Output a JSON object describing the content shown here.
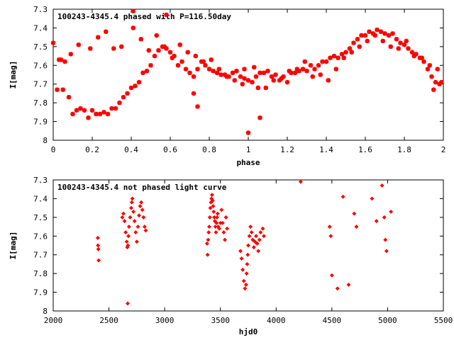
{
  "chart_data": [
    {
      "type": "scatter",
      "title": "100243-4345.4 phased with P=116.50day",
      "xlabel": "phase",
      "ylabel": "I[mag]",
      "xlim": [
        0,
        2
      ],
      "ylim": [
        8,
        7.3
      ],
      "y_inverted": true,
      "xticks": [
        "0",
        "0.2",
        "0.4",
        "0.6",
        "0.8",
        "1",
        "1.2",
        "1.4",
        "1.6",
        "1.8",
        "2"
      ],
      "yticks": [
        "7.3",
        "7.4",
        "7.5",
        "7.6",
        "7.7",
        "7.8",
        "7.9",
        "8"
      ],
      "grid": false,
      "marker_color": "#ff0000",
      "marker": "star",
      "series": [
        {
          "x": [
            0.0,
            0.02,
            0.03,
            0.05,
            0.06,
            0.08,
            0.1,
            0.12,
            0.14,
            0.16,
            0.18,
            0.2,
            0.22,
            0.24,
            0.26,
            0.28,
            0.3,
            0.32,
            0.34,
            0.36,
            0.38,
            0.4,
            0.42,
            0.44,
            0.46,
            0.48,
            0.5,
            0.52,
            0.54,
            0.56,
            0.58,
            0.6,
            0.62,
            0.64,
            0.66,
            0.68,
            0.7,
            0.72,
            0.74,
            0.76,
            0.78,
            0.8,
            0.82,
            0.84,
            0.86,
            0.88,
            0.9,
            0.92,
            0.94,
            0.96,
            0.98,
            1.0,
            1.02,
            1.04,
            1.06,
            1.08,
            1.1,
            1.12,
            1.14,
            1.16,
            1.18,
            1.2,
            1.22,
            1.24,
            1.26,
            1.28,
            1.3,
            1.32,
            1.34,
            1.36,
            1.38,
            1.4,
            1.42,
            1.44,
            1.46,
            1.48,
            1.5,
            1.52,
            1.54,
            1.56,
            1.58,
            1.6,
            1.62,
            1.64,
            1.66,
            1.68,
            1.7,
            1.72,
            1.74,
            1.76,
            1.78,
            1.8,
            1.82,
            1.84,
            1.86,
            1.88,
            1.9,
            1.92,
            1.94,
            1.96,
            1.98,
            0.04,
            0.09,
            0.13,
            0.19,
            0.23,
            0.27,
            0.31,
            0.35,
            0.41,
            0.45,
            0.49,
            0.53,
            0.57,
            0.61,
            0.65,
            0.69,
            0.73,
            0.77,
            0.81,
            0.85,
            0.89,
            0.93,
            0.97,
            1.05,
            1.09,
            1.13,
            1.17,
            1.21,
            1.25,
            1.29,
            1.33,
            1.37,
            1.41,
            1.45,
            1.49,
            1.53,
            1.57,
            1.61,
            1.65,
            1.69,
            1.73,
            1.77,
            1.81,
            1.85,
            1.89,
            1.93,
            1.97,
            0.41,
            0.58,
            1.0,
            1.06,
            0.74,
            0.72,
            0.98,
            1.03,
            1.95,
            1.99
          ],
          "y": [
            7.48,
            7.73,
            7.57,
            7.73,
            7.58,
            7.77,
            7.86,
            7.84,
            7.83,
            7.84,
            7.88,
            7.84,
            7.86,
            7.86,
            7.85,
            7.86,
            7.83,
            7.83,
            7.8,
            7.77,
            7.75,
            7.72,
            7.71,
            7.69,
            7.64,
            7.63,
            7.6,
            7.55,
            7.52,
            7.5,
            7.51,
            7.53,
            7.55,
            7.6,
            7.58,
            7.62,
            7.64,
            7.66,
            7.62,
            7.58,
            7.6,
            7.62,
            7.63,
            7.64,
            7.65,
            7.65,
            7.66,
            7.64,
            7.63,
            7.66,
            7.67,
            7.68,
            7.69,
            7.66,
            7.64,
            7.64,
            7.63,
            7.66,
            7.65,
            7.68,
            7.66,
            7.69,
            7.64,
            7.64,
            7.63,
            7.62,
            7.63,
            7.6,
            7.62,
            7.6,
            7.58,
            7.58,
            7.56,
            7.55,
            7.56,
            7.54,
            7.53,
            7.51,
            7.48,
            7.46,
            7.44,
            7.44,
            7.42,
            7.43,
            7.41,
            7.42,
            7.43,
            7.44,
            7.43,
            7.46,
            7.48,
            7.49,
            7.51,
            7.53,
            7.54,
            7.56,
            7.58,
            7.62,
            7.66,
            7.69,
            7.7,
            7.57,
            7.54,
            7.49,
            7.51,
            7.45,
            7.42,
            7.51,
            7.5,
            7.4,
            7.46,
            7.52,
            7.44,
            7.5,
            7.56,
            7.49,
            7.53,
            7.55,
            7.58,
            7.57,
            7.62,
            7.66,
            7.68,
            7.7,
            7.72,
            7.72,
            7.68,
            7.67,
            7.63,
            7.62,
            7.58,
            7.66,
            7.65,
            7.68,
            7.62,
            7.56,
            7.53,
            7.5,
            7.47,
            7.44,
            7.47,
            7.5,
            7.51,
            7.47,
            7.55,
            7.56,
            7.6,
            7.62,
            7.31,
            7.33,
            7.96,
            7.88,
            7.82,
            7.75,
            7.62,
            7.61,
            7.73,
            7.69
          ]
        }
      ]
    },
    {
      "type": "scatter",
      "title": "100243-4345.4 not phased light curve",
      "xlabel": "hjd0",
      "ylabel": "I[mag]",
      "xlim": [
        2000,
        5500
      ],
      "ylim": [
        8,
        7.3
      ],
      "y_inverted": true,
      "xticks": [
        "2000",
        "2500",
        "3000",
        "3500",
        "4000",
        "4500",
        "5000",
        "5500"
      ],
      "yticks": [
        "7.3",
        "7.4",
        "7.5",
        "7.6",
        "7.7",
        "7.8",
        "7.9",
        "8"
      ],
      "grid": false,
      "marker_color": "#ff0000",
      "marker": "diamond",
      "series": [
        {
          "x": [
            2400,
            2402,
            2405,
            2408,
            2620,
            2630,
            2640,
            2650,
            2660,
            2665,
            2670,
            2675,
            2680,
            2690,
            2700,
            2705,
            2710,
            2720,
            2730,
            2740,
            2750,
            2760,
            2770,
            2780,
            2790,
            2800,
            2810,
            2820,
            2830,
            2668,
            3380,
            3385,
            3390,
            3395,
            3400,
            3405,
            3410,
            3415,
            3420,
            3425,
            3430,
            3435,
            3440,
            3445,
            3450,
            3455,
            3460,
            3465,
            3470,
            3475,
            3480,
            3490,
            3500,
            3510,
            3520,
            3530,
            3540,
            3550,
            3560,
            3680,
            3690,
            3700,
            3710,
            3720,
            3730,
            3735,
            3740,
            3745,
            3750,
            3760,
            3770,
            3780,
            3790,
            3800,
            3810,
            3820,
            3830,
            3840,
            3850,
            3860,
            3880,
            3890,
            4220,
            4480,
            4490,
            4500,
            4550,
            4600,
            4650,
            4700,
            4720,
            4860,
            4900,
            4950,
            4970,
            4980,
            4990,
            5030
          ],
          "y": [
            7.61,
            7.65,
            7.67,
            7.73,
            7.5,
            7.48,
            7.52,
            7.58,
            7.63,
            7.66,
            7.65,
            7.6,
            7.55,
            7.5,
            7.45,
            7.42,
            7.4,
            7.47,
            7.52,
            7.58,
            7.63,
            7.55,
            7.49,
            7.44,
            7.42,
            7.46,
            7.5,
            7.55,
            7.57,
            7.96,
            7.64,
            7.7,
            7.62,
            7.58,
            7.55,
            7.5,
            7.45,
            7.42,
            7.4,
            7.38,
            7.41,
            7.44,
            7.47,
            7.5,
            7.52,
            7.55,
            7.58,
            7.53,
            7.5,
            7.48,
            7.55,
            7.56,
            7.53,
            7.46,
            7.53,
            7.58,
            7.62,
            7.5,
            7.56,
            7.68,
            7.72,
            7.78,
            7.84,
            7.88,
            7.86,
            7.8,
            7.75,
            7.7,
            7.65,
            7.6,
            7.55,
            7.58,
            7.62,
            7.66,
            7.63,
            7.6,
            7.64,
            7.68,
            7.62,
            7.58,
            7.56,
            7.6,
            7.31,
            7.55,
            7.6,
            7.81,
            7.88,
            7.39,
            7.86,
            7.48,
            7.55,
            7.4,
            7.52,
            7.33,
            7.5,
            7.62,
            7.68,
            7.47
          ]
        }
      ]
    }
  ]
}
